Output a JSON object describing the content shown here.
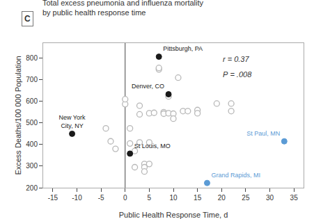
{
  "chart_data": {
    "type": "scatter",
    "title": "Total excess pneumonia and influenza mortality\nby public health response time",
    "panel_label": "C",
    "xlabel": "Public Health Response Time, d",
    "ylabel": "Excess Deaths/100 000 Population",
    "xlim": [
      -17,
      37
    ],
    "ylim": [
      200,
      870
    ],
    "xticks": [
      -15,
      -10,
      -5,
      0,
      5,
      10,
      15,
      20,
      25,
      30,
      35
    ],
    "yticks": [
      200,
      300,
      400,
      500,
      600,
      700,
      800
    ],
    "grid": false,
    "vline_x": 0,
    "annotations": [
      "r = 0.37",
      "P = .008"
    ],
    "series": [
      {
        "color": "#b8b8b8",
        "marker": "circle-open",
        "x": [
          -4,
          -3,
          -2,
          0,
          0,
          1,
          1,
          2,
          2,
          3,
          3,
          3,
          4,
          4,
          4,
          5,
          5,
          5,
          6,
          7,
          7,
          8,
          8,
          9,
          9,
          10,
          10,
          11,
          12,
          13,
          15,
          15,
          19,
          22,
          22
        ],
        "values": [
          475,
          415,
          380,
          587,
          610,
          475,
          405,
          370,
          295,
          580,
          540,
          410,
          310,
          295,
          275,
          410,
          545,
          310,
          547,
          748,
          755,
          550,
          543,
          623,
          545,
          543,
          520,
          710,
          555,
          555,
          560,
          545,
          590,
          590,
          555
        ]
      },
      {
        "color": "#1a1a1a",
        "marker": "circle",
        "x": [
          -11,
          1,
          7,
          9
        ],
        "values": [
          450,
          358,
          807,
          633
        ],
        "labels": [
          "New York\nCity, NY",
          "St Louis, MO",
          "Pittsburgh, PA",
          "Denver, CO"
        ]
      },
      {
        "color": "#5b9bd5",
        "marker": "circle",
        "x": [
          33,
          17
        ],
        "values": [
          415,
          222
        ],
        "labels": [
          "St Paul, MN",
          "Grand Rapids, MI"
        ]
      }
    ]
  }
}
